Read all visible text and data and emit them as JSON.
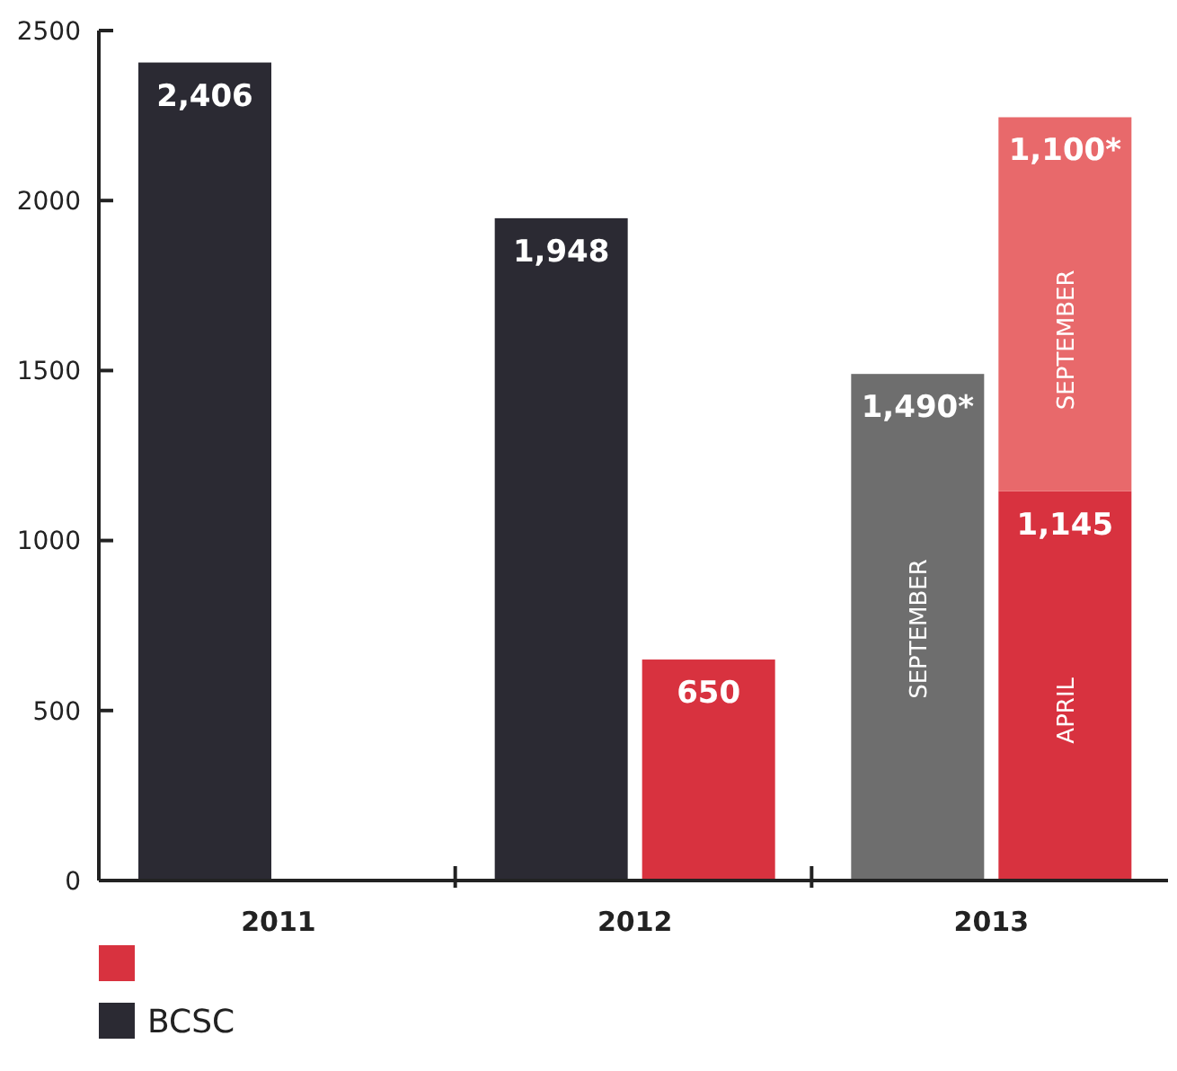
{
  "chart_data": {
    "type": "bar",
    "categories": [
      "2011",
      "2012",
      "2013"
    ],
    "series": [
      {
        "name": "BCSC",
        "color": "#2b2a33",
        "colors": [
          "#2b2a33",
          "#2b2a33",
          "#6e6e6e"
        ],
        "values": [
          2406,
          1948,
          1490
        ],
        "value_labels": [
          "2,406",
          "1,948",
          "1,490*"
        ]
      },
      {
        "color": "#d8323f",
        "values": [
          null,
          650,
          1145
        ],
        "value_labels": [
          null,
          "650",
          "1,145"
        ]
      },
      {
        "color": "#e8696b",
        "values": [
          null,
          null,
          1100
        ],
        "base": [
          null,
          null,
          1145
        ],
        "value_labels": [
          null,
          null,
          "1,100*"
        ]
      }
    ],
    "annotations": [
      {
        "text": "SEPTEMBER",
        "x": "2013",
        "y": 740
      },
      {
        "text": "APRIL",
        "x": "2013",
        "y": 500
      },
      {
        "text": "SEPTEMBER",
        "x": "2013",
        "y": 1590
      }
    ],
    "ylim": [
      0,
      2500
    ],
    "yticks": [
      0,
      500,
      1000,
      1500,
      2000,
      2500
    ],
    "grid": false,
    "legend": "bottom"
  }
}
